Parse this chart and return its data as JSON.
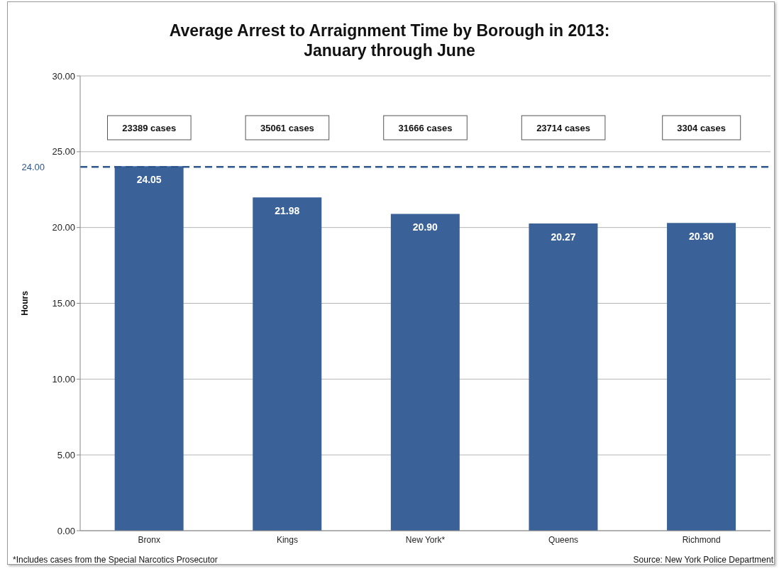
{
  "chart_data": {
    "type": "bar",
    "title": "Average Arrest to Arraignment Time by Borough in 2013: January through June",
    "ylabel": "Hours",
    "categories": [
      "Bronx",
      "Kings",
      "New York*",
      "Queens",
      "Richmond"
    ],
    "values": [
      24.05,
      21.98,
      20.9,
      20.27,
      20.3
    ],
    "value_labels": [
      "24.05",
      "21.98",
      "20.90",
      "20.27",
      "20.30"
    ],
    "color": "#3b6298",
    "ylim": [
      0,
      30
    ],
    "yticks": [
      {
        "value": 0,
        "label": "0.00"
      },
      {
        "value": 5,
        "label": "5.00"
      },
      {
        "value": 10,
        "label": "10.00"
      },
      {
        "value": 15,
        "label": "15.00"
      },
      {
        "value": 20,
        "label": "20.00"
      },
      {
        "value": 25,
        "label": "25.00"
      },
      {
        "value": 30,
        "label": "30.00"
      }
    ],
    "grid": "y",
    "ref_lines": [
      {
        "axis": "y",
        "value": 24,
        "label": "24.00",
        "color": "#2e5690",
        "line_style": "dashed"
      }
    ],
    "annotations": [
      "23389 cases",
      "35061 cases",
      "31666 cases",
      "23714 cases",
      "3304 cases",
      "*Includes cases from the Special Narcotics Prosecutor",
      "Source: New York Police Department"
    ]
  }
}
